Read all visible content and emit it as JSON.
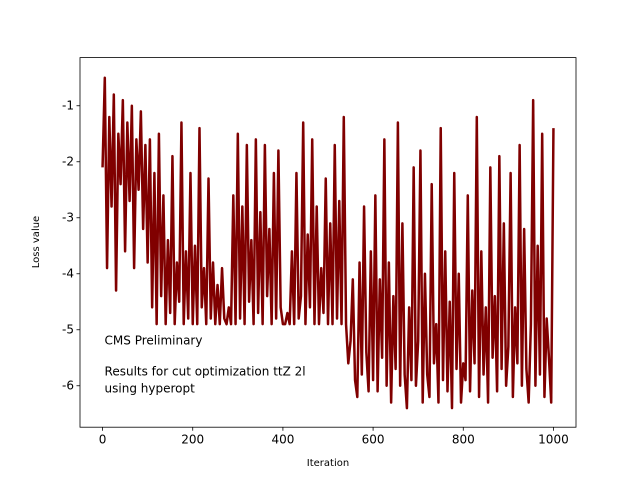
{
  "chart_data": {
    "type": "line",
    "xlabel": "Iteration",
    "ylabel": "Loss value",
    "annotations": [
      "CMS Preliminary",
      "Results for cut optimization ttZ 2l",
      "using hyperopt"
    ],
    "x": [
      0,
      5,
      10,
      15,
      20,
      25,
      30,
      35,
      40,
      45,
      50,
      55,
      60,
      65,
      70,
      75,
      80,
      85,
      90,
      95,
      100,
      105,
      110,
      115,
      120,
      125,
      130,
      135,
      140,
      145,
      150,
      155,
      160,
      165,
      170,
      175,
      180,
      185,
      190,
      195,
      200,
      205,
      210,
      215,
      220,
      225,
      230,
      235,
      240,
      245,
      250,
      255,
      260,
      265,
      270,
      275,
      280,
      285,
      290,
      295,
      300,
      305,
      310,
      315,
      320,
      325,
      330,
      335,
      340,
      345,
      350,
      355,
      360,
      365,
      370,
      375,
      380,
      385,
      390,
      395,
      400,
      405,
      410,
      415,
      420,
      425,
      430,
      435,
      440,
      445,
      450,
      455,
      460,
      465,
      470,
      475,
      480,
      485,
      490,
      495,
      500,
      505,
      510,
      515,
      520,
      525,
      530,
      535,
      540,
      545,
      550,
      555,
      560,
      565,
      570,
      575,
      580,
      585,
      590,
      595,
      600,
      605,
      610,
      615,
      620,
      625,
      630,
      635,
      640,
      645,
      650,
      655,
      660,
      665,
      670,
      675,
      680,
      685,
      690,
      695,
      700,
      705,
      710,
      715,
      720,
      725,
      730,
      735,
      740,
      745,
      750,
      755,
      760,
      765,
      770,
      775,
      780,
      785,
      790,
      795,
      800,
      805,
      810,
      815,
      820,
      825,
      830,
      835,
      840,
      845,
      850,
      855,
      860,
      865,
      870,
      875,
      880,
      885,
      890,
      895,
      900,
      905,
      910,
      915,
      920,
      925,
      930,
      935,
      940,
      945,
      950,
      955,
      960,
      965,
      970,
      975,
      980,
      985,
      990,
      995,
      1000
    ],
    "series": [
      {
        "name": "loss",
        "color": "#800000",
        "values": [
          -2.1,
          -0.5,
          -3.9,
          -1.2,
          -2.8,
          -0.8,
          -4.3,
          -1.5,
          -2.4,
          -0.9,
          -3.6,
          -1.3,
          -2.7,
          -1.0,
          -3.9,
          -1.6,
          -2.5,
          -1.1,
          -3.2,
          -1.7,
          -3.8,
          -1.6,
          -4.6,
          -2.2,
          -4.9,
          -1.5,
          -4.4,
          -2.6,
          -4.9,
          -3.4,
          -4.7,
          -1.9,
          -4.9,
          -3.8,
          -4.5,
          -1.3,
          -4.9,
          -3.6,
          -4.8,
          -2.2,
          -4.9,
          -3.5,
          -4.9,
          -1.4,
          -4.6,
          -3.9,
          -4.9,
          -2.3,
          -4.8,
          -3.8,
          -4.9,
          -4.2,
          -4.9,
          -3.9,
          -4.8,
          -4.9,
          -4.6,
          -4.9,
          -2.6,
          -4.9,
          -1.5,
          -4.8,
          -2.8,
          -4.9,
          -1.7,
          -4.5,
          -3.4,
          -4.9,
          -1.6,
          -4.7,
          -2.9,
          -4.9,
          -1.7,
          -4.4,
          -3.2,
          -4.9,
          -2.2,
          -4.8,
          -1.8,
          -4.6,
          -4.9,
          -4.9,
          -4.7,
          -4.9,
          -3.6,
          -4.9,
          -2.2,
          -4.8,
          -4.4,
          -1.3,
          -4.9,
          -3.3,
          -4.6,
          -1.6,
          -4.9,
          -2.8,
          -4.9,
          -3.9,
          -4.7,
          -2.3,
          -4.9,
          -3.1,
          -4.9,
          -1.7,
          -4.8,
          -2.7,
          -4.9,
          -1.2,
          -4.9,
          -5.6,
          -5.2,
          -4.1,
          -5.9,
          -6.2,
          -3.8,
          -5.8,
          -2.8,
          -5.4,
          -6.1,
          -3.6,
          -5.9,
          -2.6,
          -6.1,
          -4.1,
          -5.5,
          -1.6,
          -6.0,
          -3.8,
          -6.3,
          -4.4,
          -5.7,
          -1.3,
          -6.0,
          -3.1,
          -5.8,
          -6.4,
          -4.6,
          -5.9,
          -2.1,
          -6.0,
          -5.2,
          -1.8,
          -6.3,
          -4.0,
          -5.8,
          -6.2,
          -2.4,
          -5.6,
          -4.9,
          -6.3,
          -1.4,
          -5.9,
          -3.6,
          -6.1,
          -4.5,
          -6.4,
          -2.2,
          -5.7,
          -4.0,
          -6.3,
          -5.6,
          -5.9,
          -2.6,
          -6.1,
          -4.3,
          -5.6,
          -1.2,
          -6.2,
          -3.6,
          -5.8,
          -4.6,
          -6.3,
          -2.1,
          -5.5,
          -4.4,
          -6.1,
          -1.9,
          -5.7,
          -3.1,
          -6.0,
          -5.3,
          -2.2,
          -6.2,
          -4.6,
          -5.6,
          -1.7,
          -6.0,
          -3.2,
          -5.7,
          -6.3,
          -4.9,
          -0.9,
          -6.0,
          -3.5,
          -5.8,
          -1.5,
          -6.2,
          -4.8,
          -5.5,
          -6.3,
          -1.4
        ]
      }
    ],
    "xlim": [
      -50,
      1050
    ],
    "ylim": [
      -6.74,
      -0.14
    ],
    "xticks": [
      0,
      200,
      400,
      600,
      800,
      1000
    ],
    "yticks": [
      -6,
      -5,
      -4,
      -3,
      -2,
      -1
    ]
  }
}
